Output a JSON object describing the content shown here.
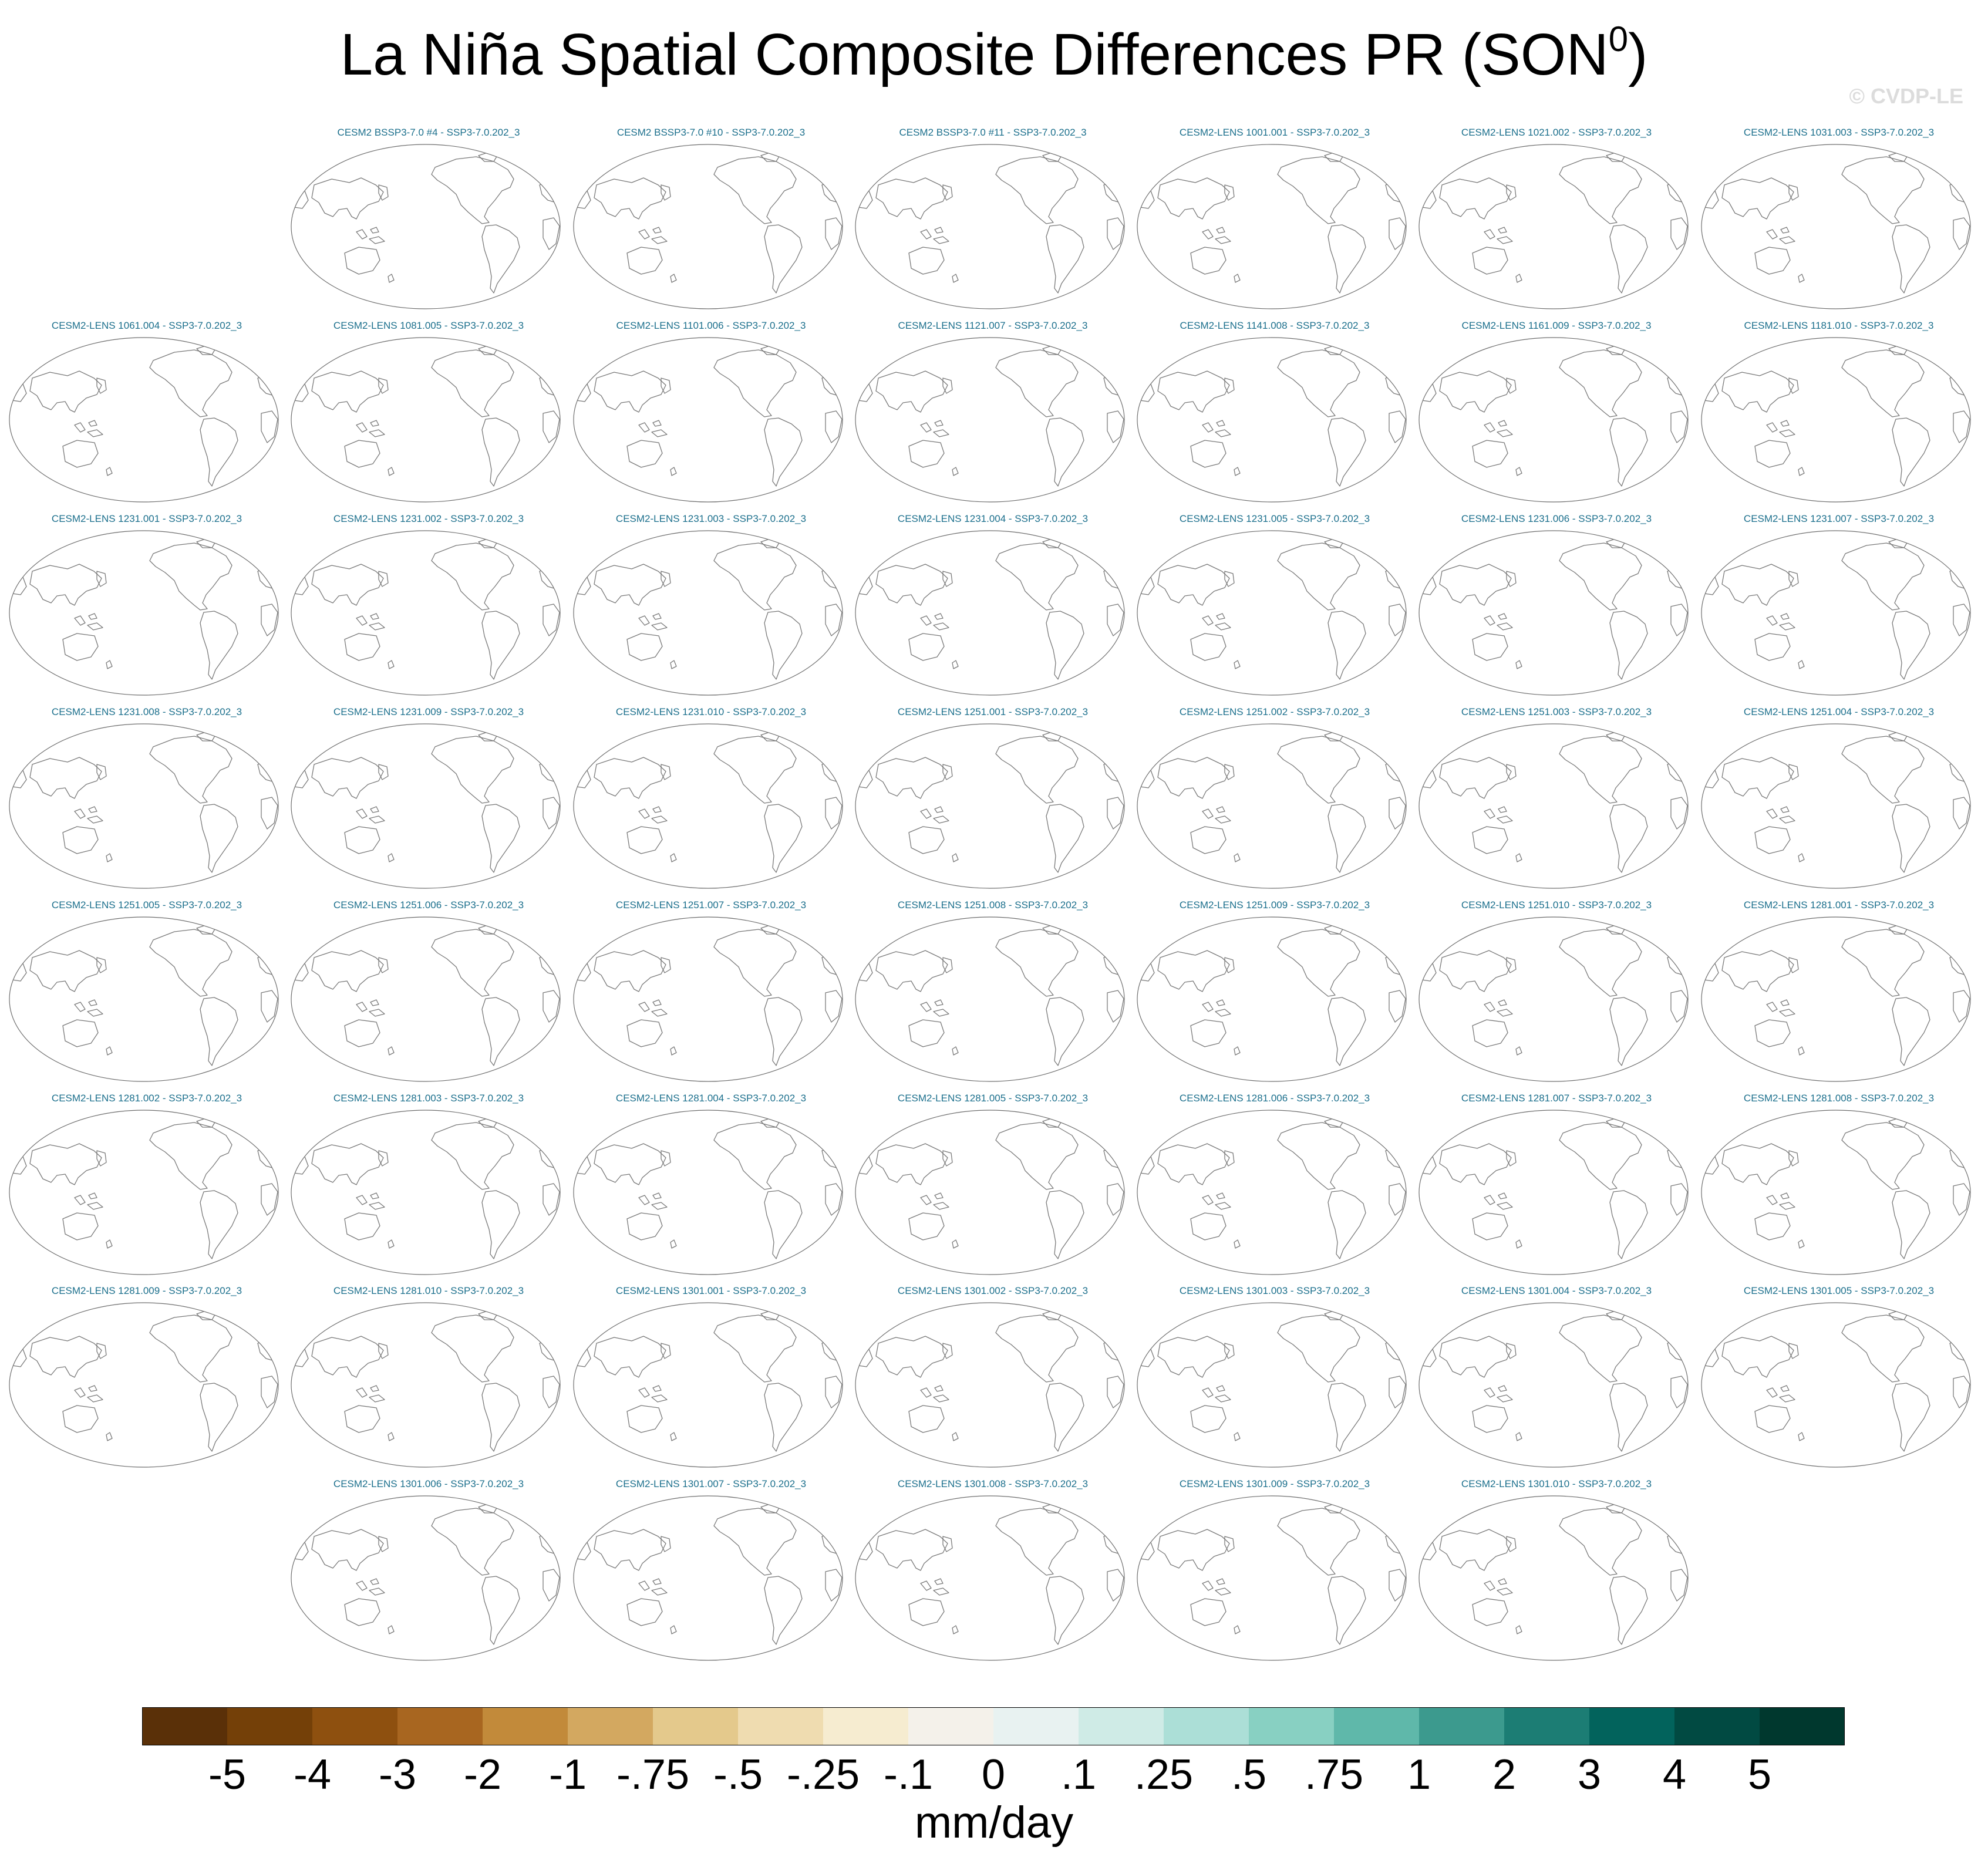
{
  "title": {
    "main": "La Niña Spatial Composite Differences PR (SON",
    "sup": "0",
    "close": ")"
  },
  "watermark": "© CVDP-LE",
  "chart_data": {
    "type": "heatmap",
    "variable": "PR",
    "season": "SON0",
    "colorbar": {
      "units": "mm/day",
      "levels": [
        "-5",
        "-4",
        "-3",
        "-2",
        "-1",
        "-.75",
        "-.5",
        "-.25",
        "-.1",
        "0",
        ".1",
        ".25",
        ".5",
        ".75",
        "1",
        "2",
        "3",
        "4",
        "5"
      ],
      "colors": [
        "#5a3008",
        "#744008",
        "#8e500f",
        "#a86620",
        "#c28a3a",
        "#d3a860",
        "#e4c98c",
        "#efdcb0",
        "#f6ecd0",
        "#f4f1ea",
        "#e8f2f1",
        "#cfebe6",
        "#acdfd7",
        "#88d0c2",
        "#5fb8aa",
        "#3c9a8e",
        "#1c7d74",
        "#02635c",
        "#014a42",
        "#00382e"
      ]
    },
    "panels": [
      {
        "label": "CESM2 BSSP3-7.0 #4 - SSP3-7.0.202_3"
      },
      {
        "label": "CESM2 BSSP3-7.0 #10 - SSP3-7.0.202_3"
      },
      {
        "label": "CESM2 BSSP3-7.0 #11 - SSP3-7.0.202_3"
      },
      {
        "label": "CESM2-LENS 1001.001 - SSP3-7.0.202_3"
      },
      {
        "label": "CESM2-LENS 1021.002 - SSP3-7.0.202_3"
      },
      {
        "label": "CESM2-LENS 1031.003 - SSP3-7.0.202_3"
      },
      {
        "label": "CESM2-LENS 1061.004 - SSP3-7.0.202_3"
      },
      {
        "label": "CESM2-LENS 1081.005 - SSP3-7.0.202_3"
      },
      {
        "label": "CESM2-LENS 1101.006 - SSP3-7.0.202_3"
      },
      {
        "label": "CESM2-LENS 1121.007 - SSP3-7.0.202_3"
      },
      {
        "label": "CESM2-LENS 1141.008 - SSP3-7.0.202_3"
      },
      {
        "label": "CESM2-LENS 1161.009 - SSP3-7.0.202_3"
      },
      {
        "label": "CESM2-LENS 1181.010 - SSP3-7.0.202_3"
      },
      {
        "label": "CESM2-LENS 1231.001 - SSP3-7.0.202_3"
      },
      {
        "label": "CESM2-LENS 1231.002 - SSP3-7.0.202_3"
      },
      {
        "label": "CESM2-LENS 1231.003 - SSP3-7.0.202_3"
      },
      {
        "label": "CESM2-LENS 1231.004 - SSP3-7.0.202_3"
      },
      {
        "label": "CESM2-LENS 1231.005 - SSP3-7.0.202_3"
      },
      {
        "label": "CESM2-LENS 1231.006 - SSP3-7.0.202_3"
      },
      {
        "label": "CESM2-LENS 1231.007 - SSP3-7.0.202_3"
      },
      {
        "label": "CESM2-LENS 1231.008 - SSP3-7.0.202_3"
      },
      {
        "label": "CESM2-LENS 1231.009 - SSP3-7.0.202_3"
      },
      {
        "label": "CESM2-LENS 1231.010 - SSP3-7.0.202_3"
      },
      {
        "label": "CESM2-LENS 1251.001 - SSP3-7.0.202_3"
      },
      {
        "label": "CESM2-LENS 1251.002 - SSP3-7.0.202_3"
      },
      {
        "label": "CESM2-LENS 1251.003 - SSP3-7.0.202_3"
      },
      {
        "label": "CESM2-LENS 1251.004 - SSP3-7.0.202_3"
      },
      {
        "label": "CESM2-LENS 1251.005 - SSP3-7.0.202_3"
      },
      {
        "label": "CESM2-LENS 1251.006 - SSP3-7.0.202_3"
      },
      {
        "label": "CESM2-LENS 1251.007 - SSP3-7.0.202_3"
      },
      {
        "label": "CESM2-LENS 1251.008 - SSP3-7.0.202_3"
      },
      {
        "label": "CESM2-LENS 1251.009 - SSP3-7.0.202_3"
      },
      {
        "label": "CESM2-LENS 1251.010 - SSP3-7.0.202_3"
      },
      {
        "label": "CESM2-LENS 1281.001 - SSP3-7.0.202_3"
      },
      {
        "label": "CESM2-LENS 1281.002 - SSP3-7.0.202_3"
      },
      {
        "label": "CESM2-LENS 1281.003 - SSP3-7.0.202_3"
      },
      {
        "label": "CESM2-LENS 1281.004 - SSP3-7.0.202_3"
      },
      {
        "label": "CESM2-LENS 1281.005 - SSP3-7.0.202_3"
      },
      {
        "label": "CESM2-LENS 1281.006 - SSP3-7.0.202_3"
      },
      {
        "label": "CESM2-LENS 1281.007 - SSP3-7.0.202_3"
      },
      {
        "label": "CESM2-LENS 1281.008 - SSP3-7.0.202_3"
      },
      {
        "label": "CESM2-LENS 1281.009 - SSP3-7.0.202_3"
      },
      {
        "label": "CESM2-LENS 1281.010 - SSP3-7.0.202_3"
      },
      {
        "label": "CESM2-LENS 1301.001 - SSP3-7.0.202_3"
      },
      {
        "label": "CESM2-LENS 1301.002 - SSP3-7.0.202_3"
      },
      {
        "label": "CESM2-LENS 1301.003 - SSP3-7.0.202_3"
      },
      {
        "label": "CESM2-LENS 1301.004 - SSP3-7.0.202_3"
      },
      {
        "label": "CESM2-LENS 1301.005 - SSP3-7.0.202_3"
      },
      {
        "label": "CESM2-LENS 1301.006 - SSP3-7.0.202_3"
      },
      {
        "label": "CESM2-LENS 1301.007 - SSP3-7.0.202_3"
      },
      {
        "label": "CESM2-LENS 1301.008 - SSP3-7.0.202_3"
      },
      {
        "label": "CESM2-LENS 1301.009 - SSP3-7.0.202_3"
      },
      {
        "label": "CESM2-LENS 1301.010 - SSP3-7.0.202_3"
      }
    ],
    "map_fill": "#ffffff",
    "coastline_color": "#7a7a7a"
  }
}
